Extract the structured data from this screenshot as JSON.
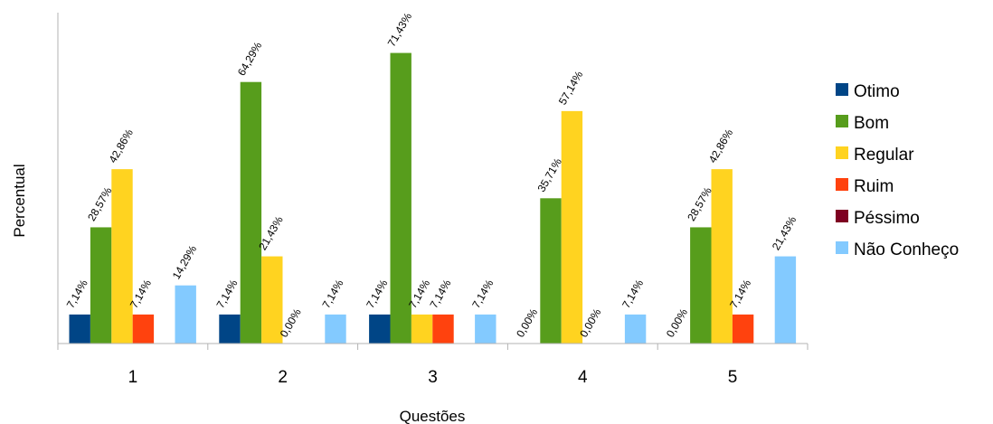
{
  "chart_data": {
    "type": "bar",
    "title": "",
    "xlabel": "Questões",
    "ylabel": "Percentual",
    "categories": [
      "1",
      "2",
      "3",
      "4",
      "5"
    ],
    "ylim": [
      0,
      75
    ],
    "grid": false,
    "legend_position": "right",
    "series": [
      {
        "name": "Otimo",
        "color": "#004586",
        "values": [
          7.14,
          7.14,
          7.14,
          0,
          0
        ],
        "labels": [
          "7,14%",
          "7,14%",
          "7,14%",
          "",
          ""
        ]
      },
      {
        "name": "Bom",
        "color": "#579d1c",
        "values": [
          28.57,
          64.29,
          71.43,
          35.71,
          28.57
        ],
        "labels": [
          "28,57%",
          "64,29%",
          "71,43%",
          "35,71%",
          "28,57%"
        ]
      },
      {
        "name": "Regular",
        "color": "#ffd320",
        "values": [
          42.86,
          21.43,
          7.14,
          57.14,
          42.86
        ],
        "labels": [
          "42,86%",
          "21,43%",
          "7,14%",
          "57,14%",
          "42,86%"
        ]
      },
      {
        "name": "Ruim",
        "color": "#ff420e",
        "values": [
          7.14,
          0,
          7.14,
          0,
          7.14
        ],
        "labels": [
          "7,14%",
          "0,00%",
          "7,14%",
          "0,00%",
          "7,14%"
        ]
      },
      {
        "name": "Péssimo",
        "color": "#7e0021",
        "values": [
          0,
          0,
          0,
          0,
          0
        ],
        "labels": [
          "",
          "",
          "",
          "",
          ""
        ]
      },
      {
        "name": "Não Conheço",
        "color": "#83caff",
        "values": [
          14.29,
          7.14,
          7.14,
          7.14,
          21.43
        ],
        "labels": [
          "14,29%",
          "7,14%",
          "7,14%",
          "7,14%",
          "21,43%"
        ]
      }
    ],
    "extra_labels": [
      {
        "category": "4",
        "series": "Otimo",
        "label": "0,00%"
      },
      {
        "category": "5",
        "series": "Otimo",
        "label": "0,00%"
      }
    ]
  }
}
